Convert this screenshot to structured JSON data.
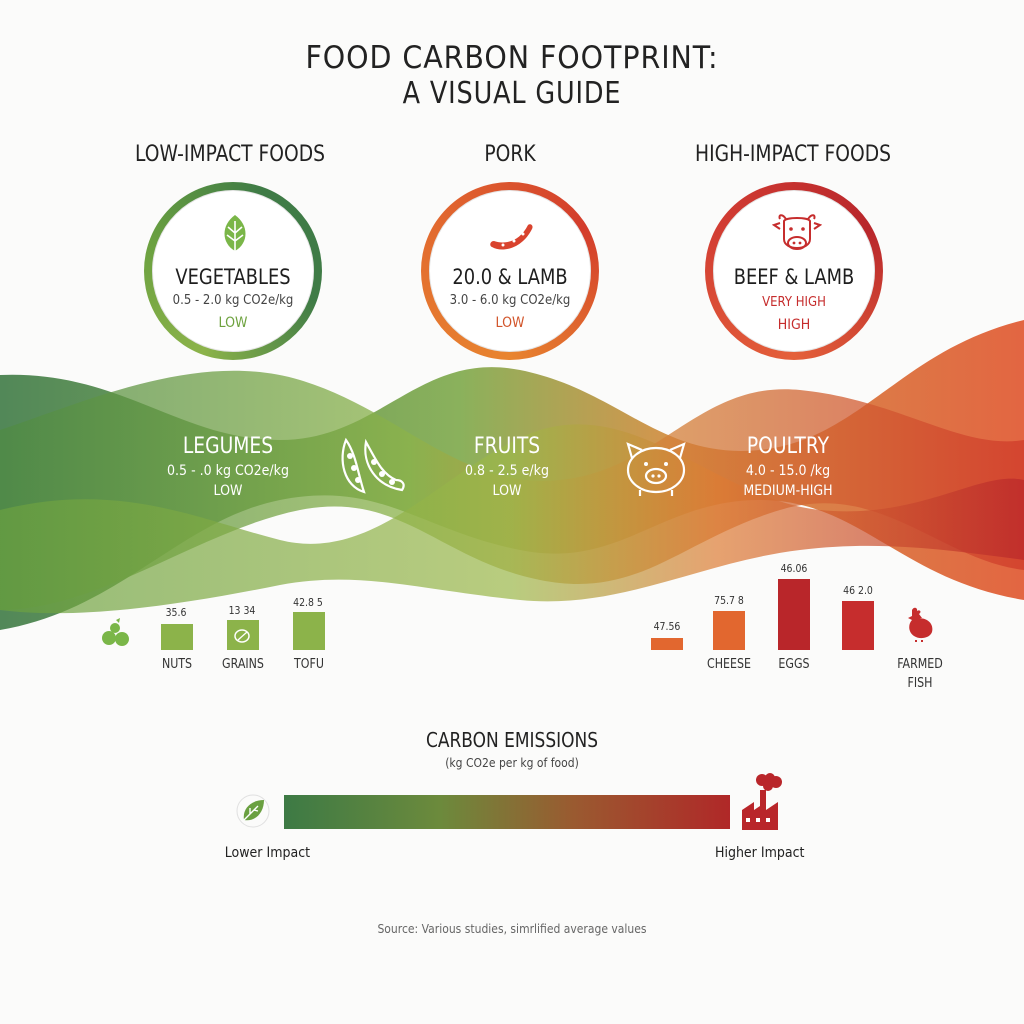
{
  "title": {
    "line1": "FOOD CARBON FOOTPRINT:",
    "line2": "A VISUAL GUIDE"
  },
  "columns": {
    "left_heading": "LOW-IMPACT FOODS",
    "center_heading": "PORK",
    "right_heading": "HIGH-IMPACT FOODS"
  },
  "circles": [
    {
      "name": "VEGETABLES",
      "range": "0.5 - 2.0 kg CO2e/kg",
      "level": "LOW",
      "level_color": "#6ea23f",
      "icon": "leaf-icon"
    },
    {
      "name": "20.0 & LAMB",
      "range": "3.0 - 6.0 kg CO2e/kg",
      "level": "LOW",
      "level_color": "#d2552b",
      "icon": "sausage-icon"
    },
    {
      "name": "BEEF & LAMB",
      "range": "VERY HIGH",
      "level": "HIGH",
      "level_color": "#c62d2d",
      "icon": "cow-icon"
    }
  ],
  "bands": [
    {
      "name": "LEGUMES",
      "range": "0.5 - .0 kg CO2e/kg",
      "level": "LOW",
      "icon": "peapod-icon"
    },
    {
      "name": "FRUITS",
      "range": "0.8 - 2.5 e/kg",
      "level": "LOW",
      "icon": "pig-icon"
    },
    {
      "name": "POULTRY",
      "range": "4.0 - 15.0 /kg",
      "level": "MEDIUM-HIGH"
    }
  ],
  "left_bars": {
    "icon": "fruit-icon",
    "items": [
      {
        "label": "NUTS",
        "value": "35.6"
      },
      {
        "label": "GRAINS",
        "value": "13 34"
      },
      {
        "label": "TOFU",
        "value": "42.8 5"
      }
    ]
  },
  "right_bars": {
    "icon": "chicken-icon",
    "items": [
      {
        "label": "",
        "value": "47.56"
      },
      {
        "label": "CHEESE",
        "value": "75.7 8"
      },
      {
        "label": "EGGS",
        "value": "46.06"
      },
      {
        "label": "",
        "value": "46 2.0"
      }
    ],
    "end_label_1": "FARMED",
    "end_label_2": "FISH"
  },
  "legend": {
    "title": "CARBON EMISSIONS",
    "subtitle": "(kg CO2e per kg of food)",
    "low_label": "Lower Impact",
    "high_label": "Higher Impact",
    "low_icon": "leaf-icon",
    "high_icon": "factory-icon"
  },
  "source": "Source: Various studies, simrlified average values",
  "colors": {
    "green_dark": "#3f7b46",
    "green_light": "#8cb34a",
    "orange": "#e2672f",
    "red": "#c62d2d"
  }
}
